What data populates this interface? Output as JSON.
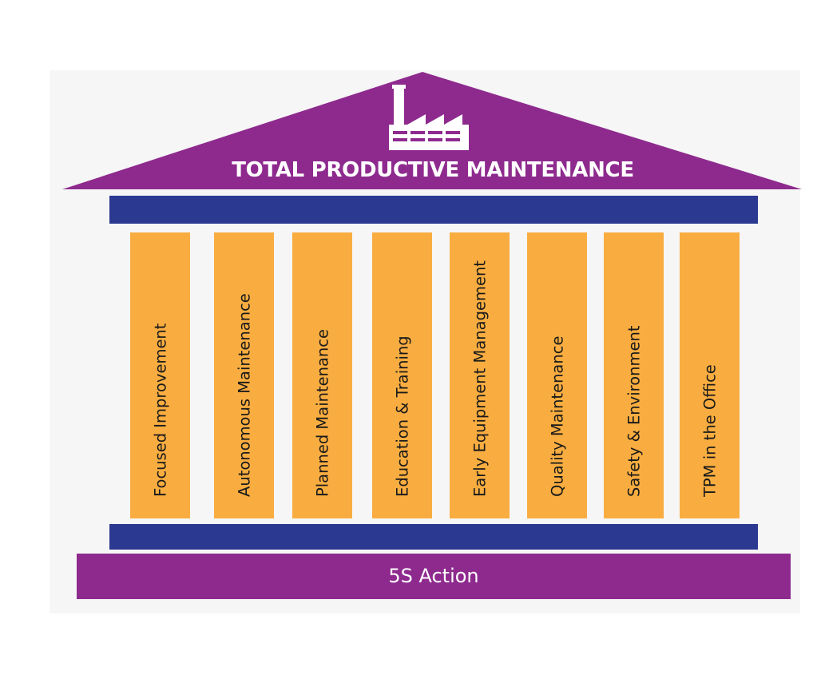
{
  "diagram": {
    "title": "TOTAL PRODUCTIVE MAINTENANCE",
    "pillars": [
      "Focused Improvement",
      "Autonomous Maintenance",
      "Planned Maintenance",
      "Education & Training",
      "Early Equipment Management",
      "Quality Maintenance",
      "Safety & Environment",
      "TPM in the Office"
    ],
    "foundation": "5S Action",
    "icon": "factory-icon",
    "colors": {
      "roof": "#8e2a8e",
      "beam": "#2b3990",
      "pillar": "#f9ad40",
      "foundation": "#8e2a8e",
      "icon": "#ffffff"
    }
  }
}
